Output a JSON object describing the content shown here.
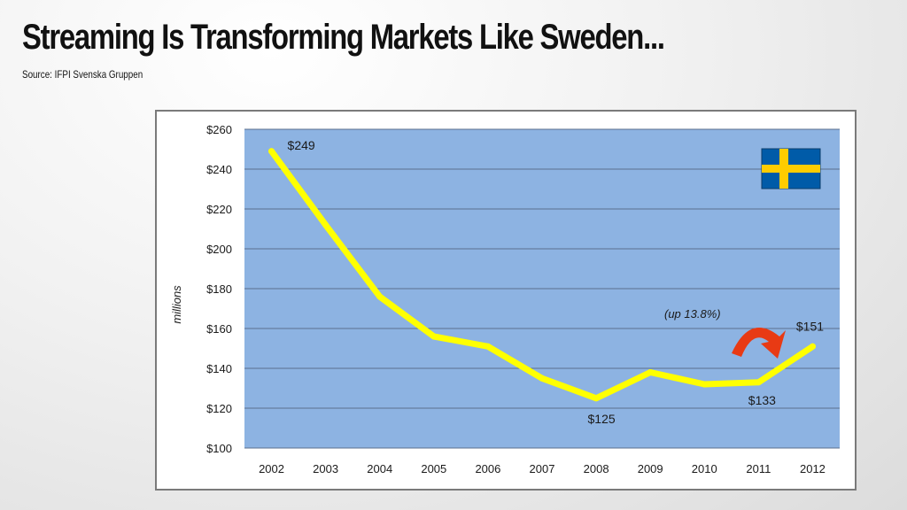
{
  "slide": {
    "title": "Streaming Is Transforming Markets Like Sweden...",
    "source": "Source: IFPI Svenska Gruppen"
  },
  "chart_data": {
    "type": "line",
    "title": "",
    "xlabel": "",
    "ylabel": "millions",
    "ylim": [
      100,
      260
    ],
    "yticks": [
      100,
      120,
      140,
      160,
      180,
      200,
      220,
      240,
      260
    ],
    "ytick_labels": [
      "$100",
      "$120",
      "$140",
      "$160",
      "$180",
      "$200",
      "$220",
      "$240",
      "$260"
    ],
    "categories": [
      "2002",
      "2003",
      "2004",
      "2005",
      "2006",
      "2007",
      "2008",
      "2009",
      "2010",
      "2011",
      "2012"
    ],
    "series": [
      {
        "values": [
          249,
          212,
          176,
          156,
          151,
          135,
          125,
          138,
          132,
          133,
          151
        ]
      }
    ],
    "data_labels": [
      {
        "index": 0,
        "text": "$249"
      },
      {
        "index": 6,
        "text": "$125"
      },
      {
        "index": 9,
        "text": "$133"
      },
      {
        "index": 10,
        "text": "$151"
      }
    ],
    "annotation": "(up 13.8%)",
    "grid": true,
    "colors": {
      "plot_background": "#8db3e2",
      "line": "#ffff00",
      "gridline": "#5a6f8f",
      "arrow": "#e83a14",
      "flag_blue": "#005ba8",
      "flag_yellow": "#fecc00"
    }
  }
}
